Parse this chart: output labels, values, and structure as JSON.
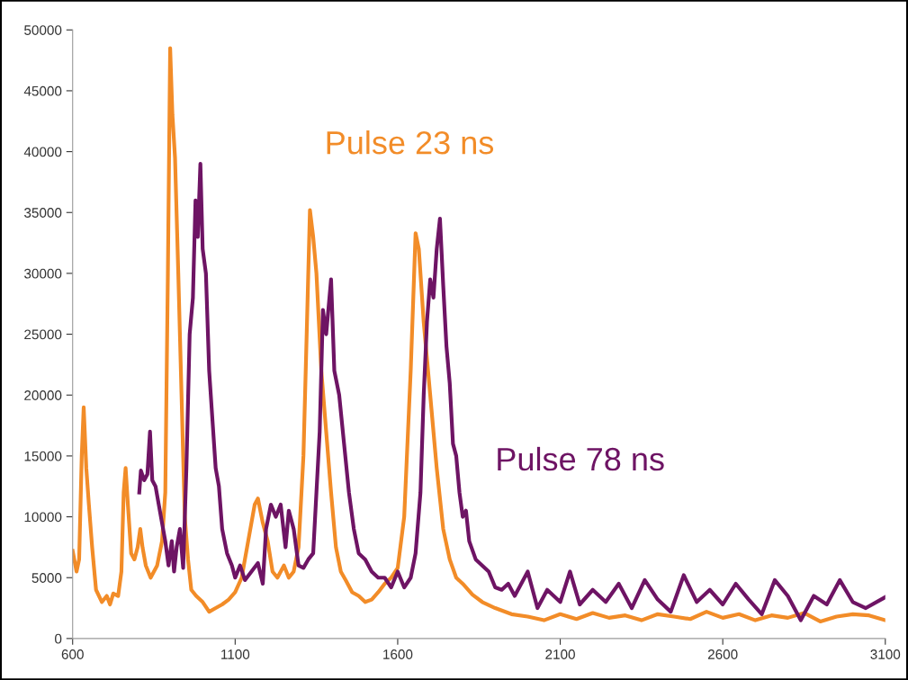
{
  "chart_data": {
    "type": "line",
    "xlim": [
      600,
      3100
    ],
    "ylim": [
      0,
      50000
    ],
    "xticks": [
      600,
      1100,
      1600,
      2100,
      2600,
      3100
    ],
    "yticks": [
      0,
      5000,
      10000,
      15000,
      20000,
      25000,
      30000,
      35000,
      40000,
      45000,
      50000
    ],
    "grid": false,
    "legend": false,
    "marker": "none",
    "line_style": "solid",
    "series": [
      {
        "name": "Pulse 23 ns",
        "color": "#f28c28",
        "x": [
          600,
          612,
          620,
          628,
          634,
          642,
          650,
          660,
          672,
          690,
          705,
          715,
          725,
          740,
          750,
          757,
          763,
          770,
          780,
          790,
          800,
          808,
          815,
          825,
          840,
          860,
          875,
          885,
          893,
          900,
          907,
          915,
          925,
          935,
          945,
          955,
          965,
          980,
          1000,
          1020,
          1040,
          1060,
          1080,
          1100,
          1120,
          1140,
          1160,
          1170,
          1185,
          1200,
          1215,
          1230,
          1250,
          1265,
          1280,
          1295,
          1310,
          1320,
          1330,
          1340,
          1350,
          1365,
          1380,
          1395,
          1410,
          1425,
          1440,
          1460,
          1480,
          1500,
          1520,
          1540,
          1560,
          1580,
          1600,
          1620,
          1640,
          1655,
          1665,
          1680,
          1700,
          1720,
          1740,
          1760,
          1780,
          1800,
          1830,
          1860,
          1900,
          1950,
          2000,
          2050,
          2100,
          2150,
          2200,
          2250,
          2300,
          2350,
          2400,
          2450,
          2500,
          2550,
          2600,
          2650,
          2700,
          2750,
          2800,
          2850,
          2900,
          2950,
          3000,
          3050,
          3100
        ],
        "values": [
          7200,
          5500,
          6500,
          15000,
          19000,
          14000,
          11000,
          7500,
          4000,
          3000,
          3500,
          2800,
          3700,
          3500,
          5500,
          12000,
          14000,
          11000,
          7000,
          6500,
          7500,
          9000,
          7500,
          6000,
          5000,
          6000,
          8000,
          12000,
          30000,
          48500,
          43000,
          39500,
          30000,
          20000,
          10000,
          6500,
          4000,
          3500,
          3000,
          2200,
          2500,
          2800,
          3200,
          3800,
          5000,
          8000,
          11000,
          11500,
          9500,
          8000,
          5500,
          5000,
          6000,
          5000,
          5500,
          7500,
          15000,
          25000,
          35200,
          33000,
          30000,
          22000,
          17000,
          12000,
          7500,
          5500,
          4800,
          3800,
          3500,
          3000,
          3200,
          3800,
          4500,
          5000,
          5800,
          10000,
          22000,
          33300,
          32000,
          26000,
          20000,
          14000,
          9000,
          6500,
          5000,
          4500,
          3600,
          3000,
          2500,
          2000,
          1800,
          1500,
          2000,
          1600,
          2100,
          1700,
          1900,
          1500,
          2000,
          1800,
          1600,
          2200,
          1700,
          2000,
          1500,
          1900,
          1700,
          2100,
          1400,
          1800,
          2000,
          1900,
          1500
        ]
      },
      {
        "name": "Pulse 78 ns",
        "color": "#6e1464",
        "x": [
          805,
          810,
          820,
          830,
          838,
          845,
          855,
          865,
          875,
          885,
          895,
          905,
          912,
          920,
          930,
          940,
          950,
          960,
          970,
          978,
          985,
          993,
          1000,
          1010,
          1020,
          1030,
          1040,
          1050,
          1060,
          1075,
          1090,
          1100,
          1115,
          1130,
          1150,
          1170,
          1185,
          1195,
          1210,
          1225,
          1240,
          1255,
          1265,
          1280,
          1295,
          1310,
          1325,
          1340,
          1350,
          1360,
          1370,
          1380,
          1395,
          1405,
          1420,
          1435,
          1450,
          1465,
          1480,
          1500,
          1520,
          1540,
          1560,
          1580,
          1600,
          1620,
          1640,
          1655,
          1670,
          1680,
          1690,
          1700,
          1710,
          1720,
          1730,
          1740,
          1750,
          1760,
          1770,
          1780,
          1790,
          1800,
          1810,
          1820,
          1840,
          1860,
          1880,
          1900,
          1920,
          1940,
          1960,
          2000,
          2030,
          2060,
          2100,
          2130,
          2160,
          2200,
          2240,
          2280,
          2320,
          2360,
          2400,
          2440,
          2480,
          2520,
          2560,
          2600,
          2640,
          2680,
          2720,
          2760,
          2800,
          2840,
          2880,
          2920,
          2960,
          3000,
          3040,
          3100
        ],
        "values": [
          12000,
          13800,
          13000,
          13500,
          17000,
          13000,
          12500,
          11000,
          9500,
          8000,
          6000,
          8000,
          5500,
          7500,
          9000,
          5800,
          14000,
          25000,
          28000,
          36000,
          33000,
          39000,
          32000,
          30000,
          22000,
          18000,
          14000,
          12500,
          9000,
          7000,
          6000,
          5000,
          6000,
          4800,
          5500,
          6200,
          4500,
          9000,
          11000,
          10000,
          11000,
          7500,
          10500,
          9000,
          6000,
          5800,
          6500,
          7000,
          12000,
          17000,
          27000,
          25000,
          29500,
          22000,
          20000,
          16000,
          12000,
          9000,
          7000,
          6500,
          5500,
          5000,
          5000,
          4200,
          5500,
          4200,
          5000,
          7000,
          12000,
          20000,
          26000,
          29500,
          28000,
          32000,
          34500,
          29000,
          24000,
          21000,
          16000,
          15000,
          12000,
          10000,
          10500,
          8000,
          6500,
          6000,
          5500,
          4200,
          4000,
          4500,
          3500,
          5500,
          2500,
          4000,
          3000,
          5500,
          2800,
          4000,
          3000,
          4500,
          2500,
          4800,
          3200,
          2200,
          5200,
          3000,
          4000,
          2800,
          4500,
          3200,
          2000,
          4800,
          3500,
          1500,
          3500,
          2800,
          4800,
          3000,
          2500,
          3400
        ]
      }
    ]
  }
}
